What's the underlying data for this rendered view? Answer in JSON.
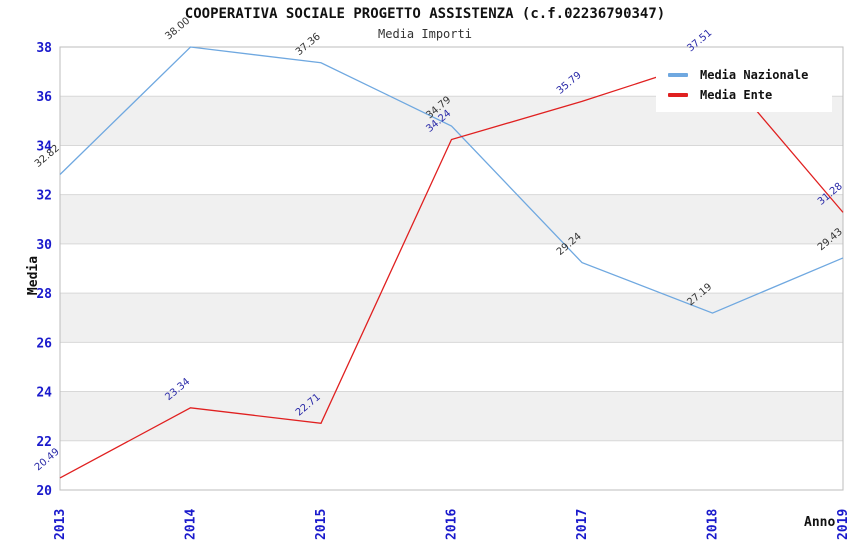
{
  "header": {
    "title": "COOPERATIVA SOCIALE PROGETTO ASSISTENZA (c.f.02236790347)",
    "subtitle": "Media Importi"
  },
  "axes": {
    "y_label": "Media",
    "x_label": "Anno",
    "y_ticks": [
      "20",
      "22",
      "24",
      "26",
      "28",
      "30",
      "32",
      "34",
      "36",
      "38"
    ],
    "x_ticks": [
      "2013",
      "2014",
      "2015",
      "2016",
      "2017",
      "2018",
      "2019"
    ],
    "tick_label_color": "#1A1ACC"
  },
  "legend": {
    "items": [
      {
        "label": "Media Nazionale",
        "color": "#6FA8E0"
      },
      {
        "label": "Media Ente",
        "color": "#E02020"
      }
    ]
  },
  "chart_data": {
    "type": "line",
    "title": "COOPERATIVA SOCIALE PROGETTO ASSISTENZA (c.f.02236790347)",
    "subtitle": "Media Importi",
    "xlabel": "Anno",
    "ylabel": "Media",
    "categories": [
      "2013",
      "2014",
      "2015",
      "2016",
      "2017",
      "2018",
      "2019"
    ],
    "series": [
      {
        "name": "Media Nazionale",
        "color": "#6FA8E0",
        "label_color": "#333333",
        "values": [
          32.82,
          38.0,
          37.36,
          34.79,
          29.24,
          27.19,
          29.43
        ]
      },
      {
        "name": "Media Ente",
        "color": "#E02020",
        "label_color": "#2A2AA8",
        "values": [
          20.49,
          23.34,
          22.71,
          34.24,
          35.79,
          37.51,
          31.28
        ]
      }
    ],
    "ylim": [
      20,
      38
    ],
    "ytick_step": 2,
    "grid": true,
    "banded_background": true,
    "band_color": "#F0F0F0",
    "grid_color": "#D8D8D8",
    "border_color": "#BDBDBD",
    "legend_position": "top-right",
    "point_labels_decimals": 2
  }
}
